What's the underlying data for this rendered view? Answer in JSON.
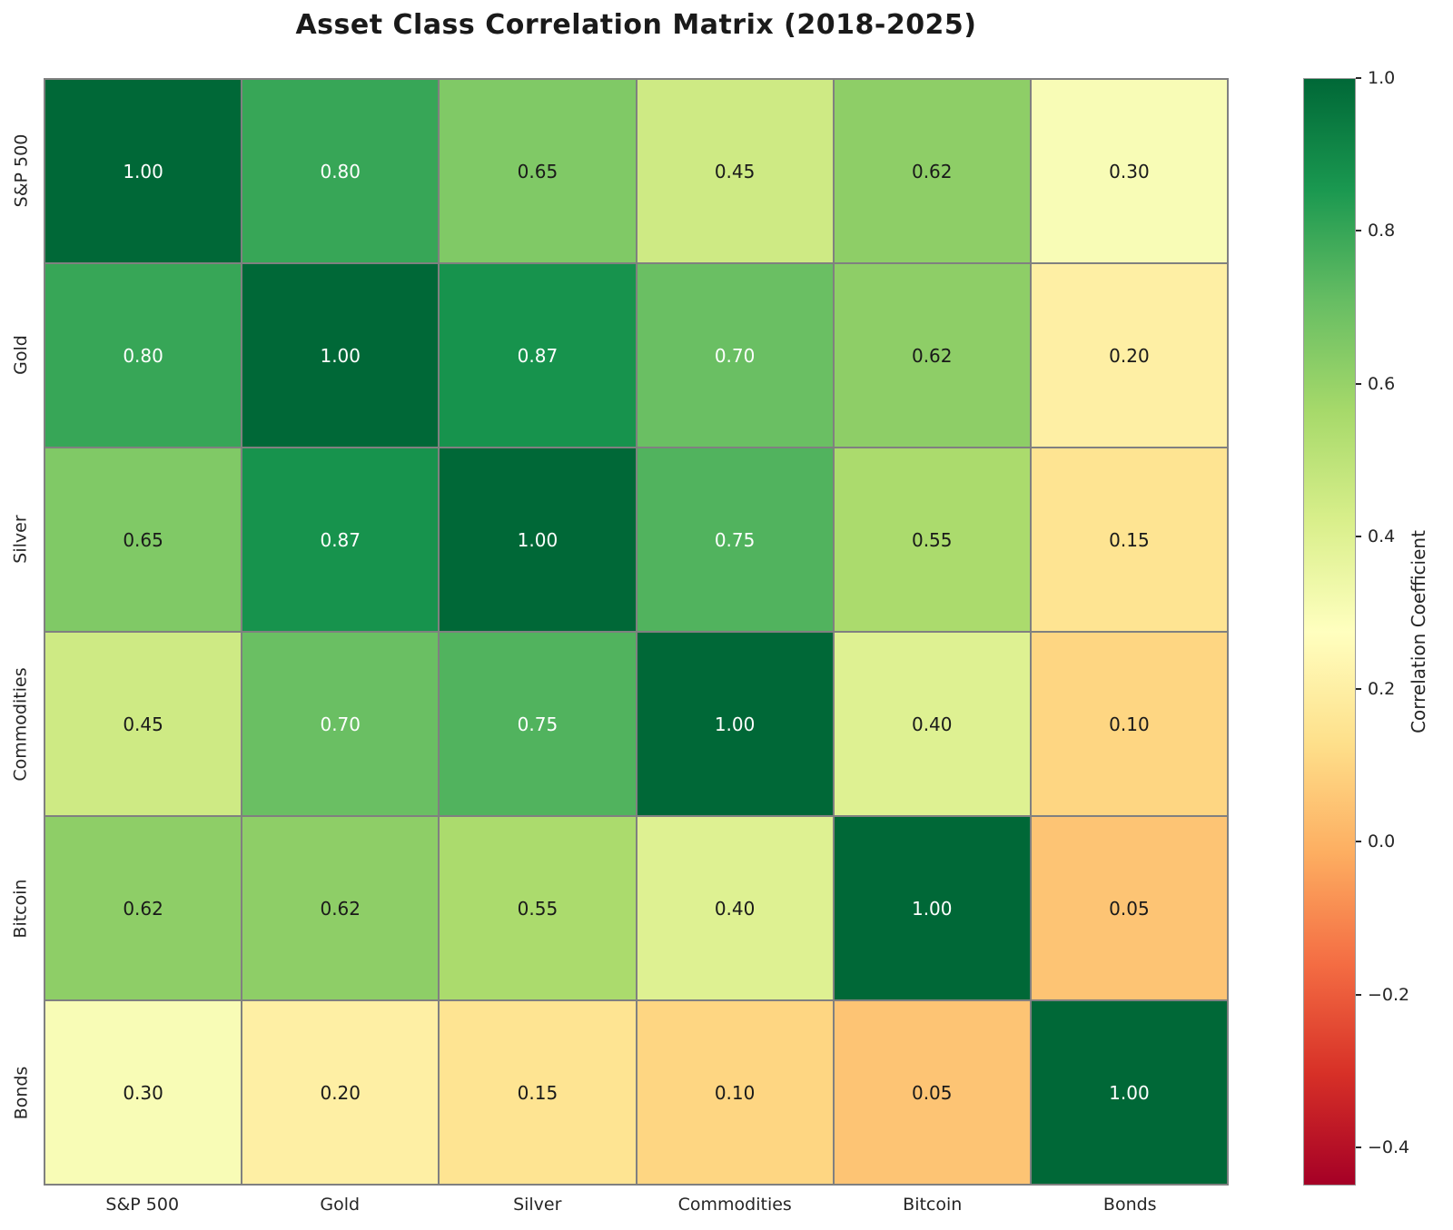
{
  "title": "Asset Class Correlation Matrix (2018-2025)",
  "background_color": "#ffffff",
  "chart_data": {
    "type": "heatmap",
    "title": "Asset Class Correlation Matrix (2018-2025)",
    "categories": [
      "S&P 500",
      "Gold",
      "Silver",
      "Commodities",
      "Bitcoin",
      "Bonds"
    ],
    "matrix": [
      [
        1.0,
        0.8,
        0.65,
        0.45,
        0.62,
        0.3
      ],
      [
        0.8,
        1.0,
        0.87,
        0.7,
        0.62,
        0.2
      ],
      [
        0.65,
        0.87,
        1.0,
        0.75,
        0.55,
        0.15
      ],
      [
        0.45,
        0.7,
        0.75,
        1.0,
        0.4,
        0.1
      ],
      [
        0.62,
        0.62,
        0.55,
        0.4,
        1.0,
        0.05
      ],
      [
        0.3,
        0.2,
        0.15,
        0.1,
        0.05,
        1.0
      ]
    ],
    "value_decimals": 2,
    "vmin": -0.45,
    "vmax": 1.0,
    "colormap_name": "RdYlGn",
    "colormap_stops": [
      {
        "pos": 0.0,
        "color": "#a50026"
      },
      {
        "pos": 0.1,
        "color": "#d73027"
      },
      {
        "pos": 0.2,
        "color": "#f46d43"
      },
      {
        "pos": 0.3,
        "color": "#fdae61"
      },
      {
        "pos": 0.4,
        "color": "#fee08b"
      },
      {
        "pos": 0.5,
        "color": "#ffffbf"
      },
      {
        "pos": 0.6,
        "color": "#d9ef8b"
      },
      {
        "pos": 0.7,
        "color": "#a6d96a"
      },
      {
        "pos": 0.8,
        "color": "#66bd63"
      },
      {
        "pos": 0.9,
        "color": "#1a9850"
      },
      {
        "pos": 1.0,
        "color": "#006837"
      }
    ],
    "grid_line_color": "#808080",
    "annotation_dark_color": "#1a1a1a",
    "annotation_light_color": "#ffffff",
    "white_text_threshold": 0.7,
    "legend_position": "right",
    "colorbar": {
      "label": "Correlation Coefficient",
      "ticks": [
        1.0,
        0.8,
        0.6,
        0.4,
        0.2,
        0.0,
        -0.2,
        -0.4
      ],
      "tick_labels": [
        "1.0",
        "0.8",
        "0.6",
        "0.4",
        "0.2",
        "0.0",
        "−0.2",
        "−0.4"
      ]
    }
  }
}
